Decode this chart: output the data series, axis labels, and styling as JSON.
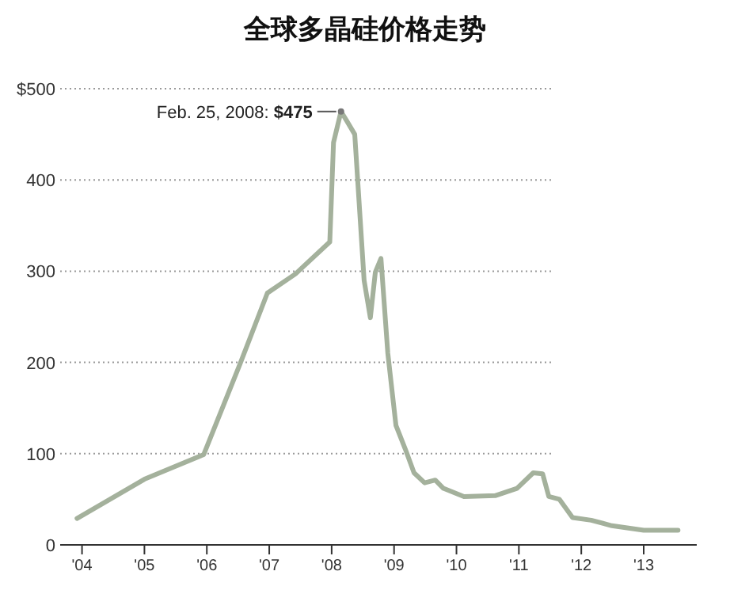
{
  "chart_data": {
    "type": "line",
    "title": "全球多晶硅价格走势",
    "x": [
      2003.92,
      2005.0,
      2005.95,
      2006.53,
      2006.97,
      2007.42,
      2007.97,
      2008.03,
      2008.15,
      2008.24,
      2008.37,
      2008.52,
      2008.62,
      2008.7,
      2008.79,
      2008.9,
      2009.03,
      2009.18,
      2009.32,
      2009.49,
      2009.66,
      2009.79,
      2010.12,
      2010.62,
      2010.97,
      2011.23,
      2011.38,
      2011.48,
      2011.65,
      2011.86,
      2012.16,
      2012.49,
      2013.0,
      2013.55
    ],
    "series": [
      {
        "color": "#a4b19c",
        "values": [
          29,
          72,
          99,
          198,
          276,
          297,
          332,
          441,
          475,
          465,
          450,
          290,
          249,
          299,
          314,
          210,
          131,
          105,
          79,
          68,
          71,
          62,
          53,
          54,
          62,
          79,
          78,
          53,
          50,
          30,
          27,
          21,
          16,
          16
        ]
      }
    ],
    "xlim": [
      2003.65,
      2013.85
    ],
    "xticks": [
      {
        "value": 2004,
        "label": "'04"
      },
      {
        "value": 2005,
        "label": "'05"
      },
      {
        "value": 2006,
        "label": "'06"
      },
      {
        "value": 2007,
        "label": "'07"
      },
      {
        "value": 2008,
        "label": "'08"
      },
      {
        "value": 2009,
        "label": "'09"
      },
      {
        "value": 2010,
        "label": "'10"
      },
      {
        "value": 2011,
        "label": "'11"
      },
      {
        "value": 2012,
        "label": "'12"
      },
      {
        "value": 2013,
        "label": "'13"
      }
    ],
    "ylim": [
      0,
      500
    ],
    "yticks": [
      0,
      100,
      200,
      300,
      400,
      {
        "value": 500,
        "label": "$500"
      }
    ],
    "grid": "y",
    "annotations": [
      {
        "text": "Feb. 25, 2008: **$475**",
        "x": 2008.15,
        "y": 475
      }
    ]
  }
}
